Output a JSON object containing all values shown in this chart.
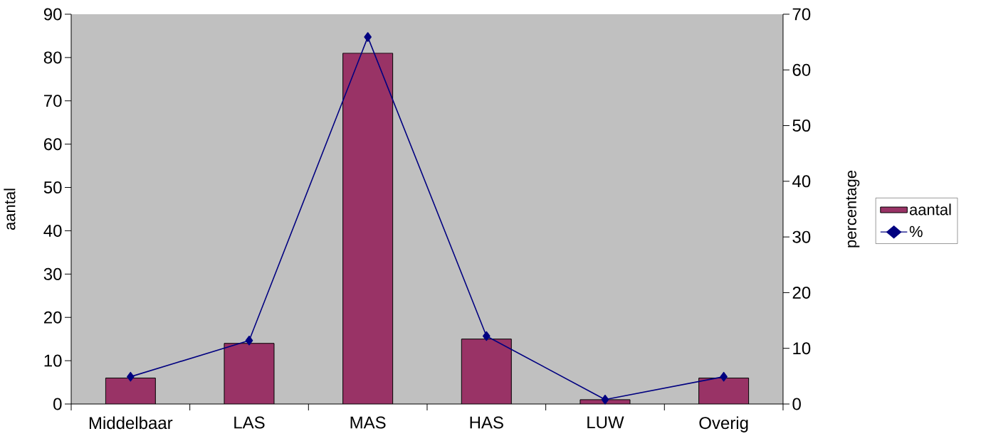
{
  "chart_data": {
    "type": "bar",
    "categories": [
      "Middelbaar",
      "LAS",
      "MAS",
      "HAS",
      "LUW",
      "Overig"
    ],
    "series": [
      {
        "name": "aantal",
        "color": "#993366",
        "values": [
          6,
          14,
          81,
          15,
          1,
          6
        ]
      },
      {
        "name": "%",
        "type": "line",
        "axis": "y2",
        "color": "#000080",
        "values": [
          4.9,
          11.4,
          65.9,
          12.2,
          0.8,
          4.9
        ]
      }
    ],
    "ylabel": "aantal",
    "y2label": "percentage",
    "ylim": [
      0,
      90
    ],
    "yticks": [
      0,
      10,
      20,
      30,
      40,
      50,
      60,
      70,
      80,
      90
    ],
    "y2lim": [
      0,
      70
    ],
    "y2ticks": [
      0,
      10,
      20,
      30,
      40,
      50,
      60,
      70
    ],
    "legend": "right",
    "marker": "diamond",
    "line_style": "solid"
  }
}
